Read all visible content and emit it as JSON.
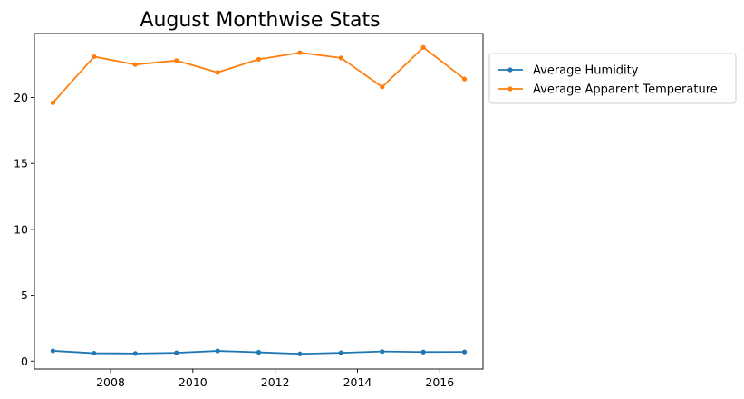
{
  "chart_data": {
    "type": "line",
    "title": "August Monthwise Stats",
    "xlabel": "",
    "ylabel": "",
    "x": [
      2006.6,
      2007.6,
      2008.6,
      2009.6,
      2010.6,
      2011.6,
      2012.6,
      2013.6,
      2014.6,
      2015.6,
      2016.6
    ],
    "x_ticks": [
      2008,
      2010,
      2012,
      2014,
      2016
    ],
    "x_tick_labels": [
      "2008",
      "2010",
      "2012",
      "2014",
      "2016"
    ],
    "y_ticks": [
      0,
      5,
      10,
      15,
      20
    ],
    "y_tick_labels": [
      "0",
      "5",
      "10",
      "15",
      "20"
    ],
    "xlim": [
      2006.15,
      2017.05
    ],
    "ylim": [
      -0.6,
      24.85
    ],
    "grid": false,
    "legend_position": "outside-right-top",
    "series": [
      {
        "name": "Average Humidity",
        "color": "#1f77b4",
        "marker": "dot",
        "values": [
          0.78,
          0.6,
          0.58,
          0.63,
          0.77,
          0.67,
          0.55,
          0.63,
          0.73,
          0.69,
          0.7
        ]
      },
      {
        "name": "Average Apparent Temperature",
        "color": "#ff7f0e",
        "marker": "dot",
        "values": [
          19.6,
          23.1,
          22.5,
          22.8,
          21.9,
          22.9,
          23.4,
          23.0,
          20.8,
          23.8,
          21.4
        ]
      }
    ]
  }
}
